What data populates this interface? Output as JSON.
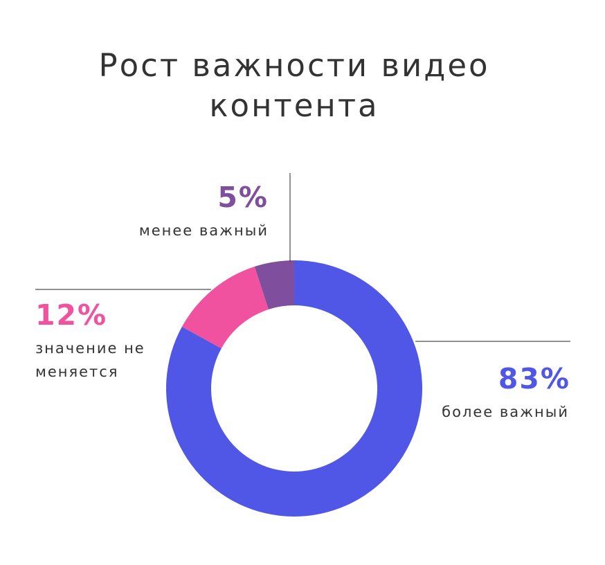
{
  "title": "Рост важности видео контента",
  "chart_data": {
    "type": "pie",
    "title": "Рост важности видео контента",
    "slices": [
      {
        "label": "более важный",
        "value": 83,
        "display": "83%",
        "color": "#5057e6"
      },
      {
        "label": "значение не меняется",
        "value": 12,
        "display": "12%",
        "color": "#f0529f"
      },
      {
        "label": "менее важный",
        "value": 5,
        "display": "5%",
        "color": "#7f4e9c"
      }
    ]
  }
}
